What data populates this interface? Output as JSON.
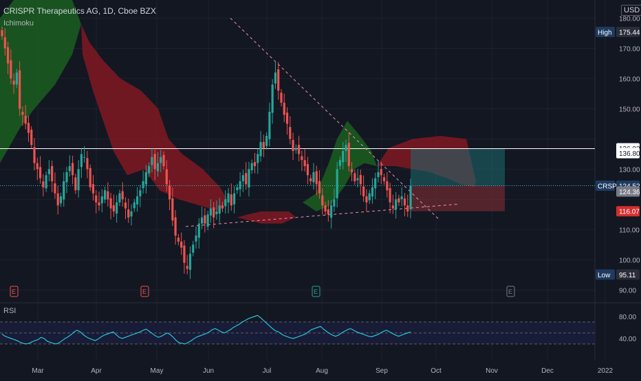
{
  "header": {
    "title": "CRISPR Therapeutics AG, 1D, Cboe BZX",
    "indicator": "Ichimoku",
    "currency": "USD"
  },
  "price_scale": {
    "labels": [
      "180.00",
      "170.00",
      "160.00",
      "150.00",
      "130.00",
      "110.00",
      "100.00",
      "90.00"
    ]
  },
  "rsi": {
    "label": "RSI",
    "scale_labels": [
      "80.00",
      "40.00"
    ],
    "levels": [
      70,
      50,
      30
    ]
  },
  "x_axis": {
    "labels": [
      "Mar",
      "Apr",
      "May",
      "Jun",
      "Jul",
      "Aug",
      "Sep",
      "Oct",
      "Nov",
      "Dec",
      "2022"
    ]
  },
  "markers": {
    "high": {
      "label": "High",
      "value": "175.44"
    },
    "low": {
      "label": "Low",
      "value": "95.11"
    }
  },
  "badges": {
    "level_136_92": "136.92",
    "level_136_80": "136.80",
    "symbol": "CRSP",
    "last": "124.52",
    "target": "124.36",
    "stop": "116.07"
  },
  "earnings_marker": "E",
  "colors": {
    "up": "#26a69a",
    "down": "#ef5350",
    "cloud_green": "#1b5e20",
    "cloud_red": "#801922",
    "rsi_line": "#26c6da",
    "background": "#131722"
  },
  "chart_data": [
    {
      "type": "candlestick",
      "title": "CRISPR Therapeutics AG, 1D, Cboe BZX",
      "y_range": [
        86,
        186
      ],
      "high": 175.44,
      "low": 95.11,
      "last": 124.52,
      "overlays": [
        "Ichimoku"
      ],
      "horizontal_levels": [
        136.8
      ],
      "x_ticks": [
        "Mar",
        "Apr",
        "May",
        "Jun",
        "Jul",
        "Aug",
        "Sep",
        "Oct",
        "Nov",
        "Dec",
        "2022"
      ],
      "candle_count": 140,
      "close_series": [
        174,
        170,
        165,
        160,
        158,
        162,
        150,
        148,
        145,
        142,
        138,
        132,
        130,
        127,
        124,
        128,
        130,
        126,
        122,
        118,
        121,
        126,
        129,
        131,
        128,
        123,
        130,
        135,
        134,
        130,
        124,
        122,
        119,
        118,
        121,
        123,
        120,
        117,
        116,
        119,
        122,
        120,
        117,
        114,
        116,
        119,
        121,
        123,
        126,
        129,
        131,
        134,
        130,
        132,
        134,
        131,
        125,
        120,
        113,
        108,
        106,
        104,
        99,
        97,
        102,
        105,
        108,
        112,
        114,
        112,
        115,
        117,
        114,
        116,
        118,
        117,
        120,
        122,
        118,
        122,
        124,
        126,
        128,
        125,
        130,
        132,
        131,
        135,
        139,
        137,
        141,
        149,
        158,
        162,
        156,
        152,
        148,
        145,
        140,
        136,
        137,
        135,
        133,
        131,
        128,
        126,
        129,
        125,
        122,
        118,
        116,
        115,
        118,
        120,
        130,
        133,
        136,
        138,
        131,
        129,
        126,
        127,
        125,
        121,
        119,
        122,
        124,
        127,
        129,
        128,
        126,
        123,
        119,
        117,
        120,
        119,
        121,
        118,
        116,
        124.52
      ]
    },
    {
      "type": "line",
      "title": "RSI",
      "y_range": [
        0,
        100
      ],
      "levels": [
        70,
        50,
        30
      ],
      "values": [
        48,
        44,
        42,
        40,
        38,
        36,
        33,
        31,
        30,
        31,
        34,
        36,
        38,
        42,
        40,
        35,
        33,
        31,
        30,
        32,
        36,
        40,
        43,
        47,
        52,
        55,
        52,
        47,
        43,
        40,
        38,
        36,
        39,
        43,
        46,
        48,
        50,
        52,
        47,
        42,
        40,
        42,
        44,
        46,
        48,
        50,
        52,
        55,
        57,
        53,
        49,
        45,
        42,
        44,
        47,
        50,
        47,
        42,
        36,
        32,
        31,
        30,
        33,
        36,
        40,
        43,
        45,
        47,
        49,
        52,
        56,
        58,
        55,
        52,
        50,
        53,
        56,
        60,
        63,
        66,
        70,
        73,
        76,
        78,
        80,
        82,
        78,
        73,
        68,
        63,
        58,
        54,
        52,
        48,
        45,
        43,
        41,
        40,
        42,
        44,
        46,
        48,
        52,
        56,
        58,
        60,
        62,
        57,
        53,
        49,
        46,
        44,
        46,
        50,
        53,
        56,
        58,
        55,
        52,
        50,
        48,
        46,
        44,
        43,
        45,
        47,
        50,
        53,
        55,
        52,
        49,
        46,
        44,
        46,
        48,
        50,
        52
      ]
    }
  ]
}
